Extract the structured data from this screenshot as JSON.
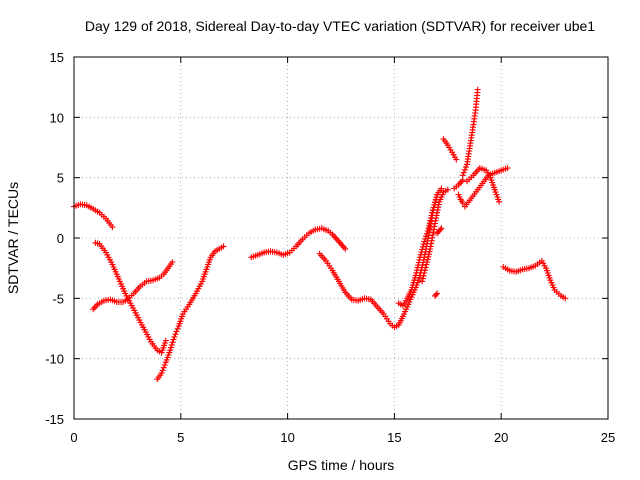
{
  "chart_data": {
    "type": "scatter",
    "title": "Day 129 of 2018, Sidereal Day-to-day VTEC variation (SDTVAR) for receiver ube1",
    "xlabel": "GPS time / hours",
    "ylabel": "SDTVAR / TECUs",
    "xlim": [
      0,
      25
    ],
    "ylim": [
      -15,
      15
    ],
    "xticks": [
      0,
      5,
      10,
      15,
      20,
      25
    ],
    "yticks": [
      -15,
      -10,
      -5,
      0,
      5,
      10,
      15
    ],
    "grid": true,
    "marker": "+",
    "color": "#ff0000",
    "segments": [
      [
        [
          0.0,
          2.6
        ],
        [
          0.3,
          2.8
        ],
        [
          0.6,
          2.7
        ],
        [
          0.9,
          2.4
        ],
        [
          1.2,
          2.1
        ],
        [
          1.5,
          1.6
        ],
        [
          1.8,
          0.9
        ]
      ],
      [
        [
          1.0,
          -0.4
        ],
        [
          1.2,
          -0.5
        ],
        [
          1.5,
          -1.2
        ],
        [
          1.8,
          -2.2
        ],
        [
          2.1,
          -3.4
        ],
        [
          2.4,
          -4.6
        ],
        [
          2.7,
          -5.6
        ],
        [
          3.0,
          -6.6
        ],
        [
          3.3,
          -7.6
        ],
        [
          3.6,
          -8.6
        ],
        [
          3.9,
          -9.3
        ],
        [
          4.1,
          -9.5
        ],
        [
          4.3,
          -8.5
        ]
      ],
      [
        [
          0.9,
          -5.9
        ],
        [
          1.1,
          -5.5
        ],
        [
          1.4,
          -5.2
        ],
        [
          1.7,
          -5.1
        ],
        [
          2.0,
          -5.3
        ],
        [
          2.3,
          -5.3
        ],
        [
          2.5,
          -5.1
        ],
        [
          2.8,
          -4.6
        ],
        [
          3.1,
          -4.0
        ],
        [
          3.4,
          -3.6
        ],
        [
          3.7,
          -3.5
        ],
        [
          4.0,
          -3.3
        ],
        [
          4.2,
          -3.0
        ],
        [
          4.4,
          -2.5
        ],
        [
          4.6,
          -2.0
        ]
      ],
      [
        [
          3.9,
          -11.7
        ],
        [
          4.1,
          -11.2
        ],
        [
          4.3,
          -10.3
        ],
        [
          4.5,
          -9.3
        ],
        [
          4.7,
          -8.2
        ],
        [
          4.9,
          -7.3
        ],
        [
          5.1,
          -6.3
        ],
        [
          5.4,
          -5.5
        ],
        [
          5.7,
          -4.6
        ],
        [
          6.0,
          -3.6
        ],
        [
          6.2,
          -2.6
        ],
        [
          6.4,
          -1.6
        ],
        [
          6.6,
          -1.1
        ],
        [
          6.8,
          -0.9
        ],
        [
          7.0,
          -0.7
        ]
      ],
      [
        [
          8.3,
          -1.6
        ],
        [
          8.6,
          -1.4
        ],
        [
          8.9,
          -1.2
        ],
        [
          9.2,
          -1.1
        ],
        [
          9.5,
          -1.2
        ],
        [
          9.8,
          -1.4
        ],
        [
          10.1,
          -1.2
        ],
        [
          10.4,
          -0.7
        ],
        [
          10.7,
          -0.1
        ],
        [
          11.0,
          0.4
        ],
        [
          11.3,
          0.7
        ],
        [
          11.6,
          0.8
        ],
        [
          11.9,
          0.6
        ],
        [
          12.1,
          0.3
        ],
        [
          12.3,
          -0.1
        ],
        [
          12.5,
          -0.5
        ],
        [
          12.7,
          -0.9
        ]
      ],
      [
        [
          11.5,
          -1.3
        ],
        [
          11.8,
          -1.9
        ],
        [
          12.1,
          -2.7
        ],
        [
          12.4,
          -3.6
        ],
        [
          12.7,
          -4.5
        ],
        [
          13.0,
          -5.1
        ],
        [
          13.3,
          -5.2
        ],
        [
          13.6,
          -5.0
        ],
        [
          13.9,
          -5.1
        ],
        [
          14.2,
          -5.7
        ],
        [
          14.5,
          -6.3
        ],
        [
          14.8,
          -7.1
        ],
        [
          15.0,
          -7.4
        ],
        [
          15.2,
          -7.2
        ],
        [
          15.4,
          -6.5
        ],
        [
          15.6,
          -5.7
        ],
        [
          15.8,
          -4.9
        ],
        [
          16.0,
          -4.1
        ],
        [
          16.2,
          -3.1
        ],
        [
          16.4,
          -1.6
        ],
        [
          16.6,
          0.2
        ],
        [
          16.8,
          2.1
        ],
        [
          17.0,
          3.6
        ],
        [
          17.2,
          4.1
        ]
      ],
      [
        [
          15.2,
          -5.4
        ],
        [
          15.4,
          -5.6
        ],
        [
          15.6,
          -5.0
        ],
        [
          15.8,
          -4.3
        ],
        [
          16.0,
          -3.1
        ],
        [
          16.2,
          -1.6
        ],
        [
          16.4,
          -0.3
        ],
        [
          16.6,
          0.8
        ],
        [
          16.8,
          2.3
        ],
        [
          17.0,
          3.6
        ]
      ],
      [
        [
          16.3,
          -3.6
        ],
        [
          16.5,
          -2.2
        ],
        [
          16.7,
          -0.7
        ],
        [
          16.9,
          1.2
        ],
        [
          17.1,
          3.0
        ],
        [
          17.3,
          3.8
        ],
        [
          17.5,
          4.0
        ]
      ],
      [
        [
          16.9,
          -4.8
        ],
        [
          17.0,
          -4.6
        ]
      ],
      [
        [
          17.0,
          0.4
        ],
        [
          17.1,
          0.6
        ],
        [
          17.2,
          0.8
        ]
      ],
      [
        [
          17.3,
          8.2
        ],
        [
          17.5,
          7.7
        ],
        [
          17.7,
          7.1
        ],
        [
          17.9,
          6.5
        ]
      ],
      [
        [
          17.8,
          4.1
        ],
        [
          18.0,
          4.4
        ],
        [
          18.2,
          4.8
        ]
      ],
      [
        [
          18.0,
          3.6
        ],
        [
          18.1,
          3.2
        ],
        [
          18.2,
          2.9
        ]
      ],
      [
        [
          18.2,
          5.2
        ],
        [
          18.4,
          6.1
        ],
        [
          18.5,
          7.2
        ],
        [
          18.6,
          8.3
        ],
        [
          18.7,
          9.4
        ],
        [
          18.8,
          10.6
        ],
        [
          18.9,
          12.3
        ]
      ],
      [
        [
          18.3,
          2.6
        ],
        [
          18.6,
          3.3
        ],
        [
          18.9,
          4.0
        ],
        [
          19.2,
          4.7
        ],
        [
          19.4,
          5.2
        ],
        [
          19.7,
          5.4
        ],
        [
          20.0,
          5.6
        ],
        [
          20.3,
          5.8
        ]
      ],
      [
        [
          18.4,
          4.7
        ],
        [
          18.7,
          5.2
        ],
        [
          19.0,
          5.8
        ],
        [
          19.3,
          5.6
        ],
        [
          19.5,
          5.0
        ],
        [
          19.7,
          4.0
        ],
        [
          19.9,
          3.0
        ]
      ],
      [
        [
          20.1,
          -2.4
        ],
        [
          20.4,
          -2.7
        ],
        [
          20.7,
          -2.8
        ],
        [
          21.0,
          -2.6
        ],
        [
          21.3,
          -2.5
        ],
        [
          21.6,
          -2.3
        ],
        [
          21.9,
          -1.9
        ],
        [
          22.1,
          -2.5
        ],
        [
          22.3,
          -3.5
        ],
        [
          22.5,
          -4.3
        ],
        [
          22.8,
          -4.8
        ],
        [
          23.0,
          -5.0
        ]
      ]
    ]
  }
}
